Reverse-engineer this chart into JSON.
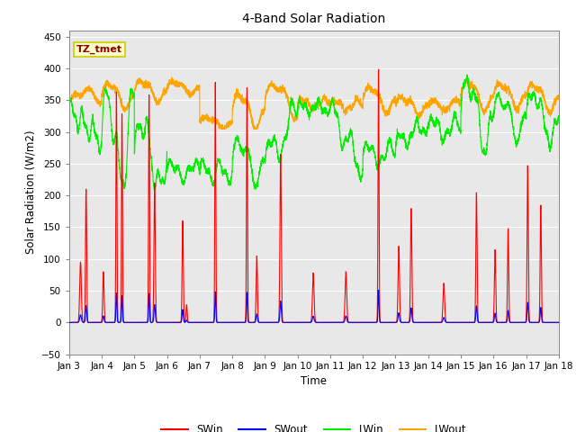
{
  "title": "4-Band Solar Radiation",
  "xlabel": "Time",
  "ylabel": "Solar Radiation (W/m2)",
  "ylim": [
    -50,
    460
  ],
  "line_colors": {
    "SWin": "#ff0000",
    "SWout": "#0000ff",
    "LWin": "#00ee00",
    "LWout": "#ffa500"
  },
  "legend_label": "TZ_tmet",
  "n_days": 15,
  "pts_per_day": 288
}
